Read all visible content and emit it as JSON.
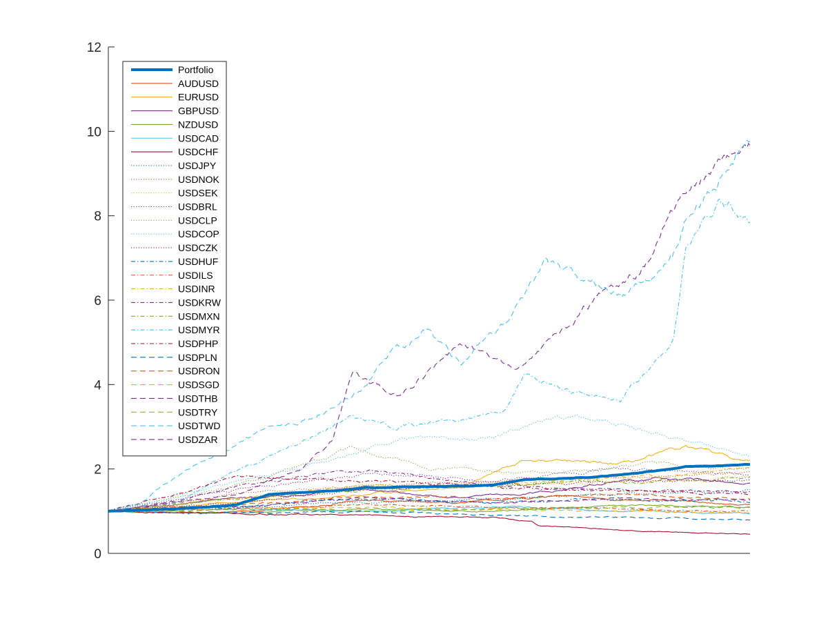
{
  "chart_data": {
    "type": "line",
    "title": "",
    "xlabel": "",
    "ylabel": "",
    "ylim": [
      0,
      12
    ],
    "yticks": [
      0,
      2,
      4,
      6,
      8,
      10,
      12
    ],
    "x_tick_labels": [],
    "grid": false,
    "legend_position": "top-left",
    "series": [
      {
        "name": "Portfolio",
        "color": "#0072BD",
        "style": "solid",
        "bold": true,
        "key_points": [
          [
            0,
            1.0
          ],
          [
            0.1,
            1.05
          ],
          [
            0.2,
            1.15
          ],
          [
            0.25,
            1.4
          ],
          [
            0.35,
            1.48
          ],
          [
            0.4,
            1.55
          ],
          [
            0.5,
            1.58
          ],
          [
            0.6,
            1.62
          ],
          [
            0.65,
            1.75
          ],
          [
            0.75,
            1.8
          ],
          [
            0.85,
            1.95
          ],
          [
            0.9,
            2.05
          ],
          [
            1.0,
            2.1
          ]
        ]
      },
      {
        "name": "AUDUSD",
        "color": "#D95319",
        "style": "solid",
        "key_points": [
          [
            0,
            1.0
          ],
          [
            0.15,
            0.95
          ],
          [
            0.3,
            1.1
          ],
          [
            0.4,
            1.25
          ],
          [
            0.55,
            1.2
          ],
          [
            0.7,
            1.35
          ],
          [
            0.85,
            1.25
          ],
          [
            1.0,
            1.15
          ]
        ]
      },
      {
        "name": "EURUSD",
        "color": "#EDB120",
        "style": "solid",
        "key_points": [
          [
            0,
            1.0
          ],
          [
            0.2,
            1.2
          ],
          [
            0.4,
            1.4
          ],
          [
            0.55,
            1.6
          ],
          [
            0.65,
            2.2
          ],
          [
            0.8,
            2.1
          ],
          [
            0.9,
            2.5
          ],
          [
            1.0,
            2.15
          ]
        ]
      },
      {
        "name": "GBPUSD",
        "color": "#7E2F8E",
        "style": "solid",
        "key_points": [
          [
            0,
            1.0
          ],
          [
            0.2,
            1.3
          ],
          [
            0.4,
            1.5
          ],
          [
            0.55,
            1.3
          ],
          [
            0.7,
            1.5
          ],
          [
            0.85,
            1.8
          ],
          [
            1.0,
            1.65
          ]
        ]
      },
      {
        "name": "NZDUSD",
        "color": "#77AC30",
        "style": "solid",
        "key_points": [
          [
            0,
            1.0
          ],
          [
            0.2,
            0.95
          ],
          [
            0.4,
            1.05
          ],
          [
            0.6,
            1.0
          ],
          [
            0.8,
            1.15
          ],
          [
            1.0,
            1.1
          ]
        ]
      },
      {
        "name": "USDCAD",
        "color": "#4DBEEE",
        "style": "solid",
        "key_points": [
          [
            0,
            1.0
          ],
          [
            0.2,
            1.05
          ],
          [
            0.4,
            1.0
          ],
          [
            0.6,
            1.1
          ],
          [
            0.8,
            1.0
          ],
          [
            1.0,
            0.95
          ]
        ]
      },
      {
        "name": "USDCHF",
        "color": "#A2142F",
        "style": "solid",
        "key_points": [
          [
            0,
            1.0
          ],
          [
            0.2,
            0.95
          ],
          [
            0.4,
            0.9
          ],
          [
            0.6,
            0.85
          ],
          [
            0.66,
            0.75
          ],
          [
            0.67,
            0.65
          ],
          [
            0.8,
            0.55
          ],
          [
            1.0,
            0.45
          ]
        ]
      },
      {
        "name": "USDJPY",
        "color": "#0072BD",
        "style": "dotted",
        "key_points": [
          [
            0,
            1.0
          ],
          [
            0.2,
            1.1
          ],
          [
            0.4,
            1.2
          ],
          [
            0.6,
            1.3
          ],
          [
            0.8,
            1.4
          ],
          [
            1.0,
            1.5
          ]
        ]
      },
      {
        "name": "USDNOK",
        "color": "#D95319",
        "style": "dotted",
        "key_points": [
          [
            0,
            1.0
          ],
          [
            0.2,
            1.4
          ],
          [
            0.4,
            1.6
          ],
          [
            0.6,
            1.7
          ],
          [
            0.8,
            1.8
          ],
          [
            1.0,
            1.9
          ]
        ]
      },
      {
        "name": "USDSEK",
        "color": "#EDB120",
        "style": "dotted",
        "key_points": [
          [
            0,
            1.0
          ],
          [
            0.2,
            1.3
          ],
          [
            0.4,
            1.5
          ],
          [
            0.6,
            1.6
          ],
          [
            0.8,
            1.7
          ],
          [
            1.0,
            1.8
          ]
        ]
      },
      {
        "name": "USDBRL",
        "color": "#7E2F8E",
        "style": "dotted",
        "key_points": [
          [
            0,
            1.0
          ],
          [
            0.2,
            1.5
          ],
          [
            0.4,
            1.9
          ],
          [
            0.6,
            1.7
          ],
          [
            0.8,
            2.0
          ],
          [
            1.0,
            1.85
          ]
        ]
      },
      {
        "name": "USDCLP",
        "color": "#77AC30",
        "style": "dotted",
        "key_points": [
          [
            0,
            1.0
          ],
          [
            0.2,
            1.6
          ],
          [
            0.38,
            2.5
          ],
          [
            0.5,
            2.0
          ],
          [
            0.7,
            1.9
          ],
          [
            0.85,
            2.1
          ],
          [
            1.0,
            2.0
          ]
        ]
      },
      {
        "name": "USDCOP",
        "color": "#4DBEEE",
        "style": "dotted",
        "key_points": [
          [
            0,
            1.0
          ],
          [
            0.2,
            1.7
          ],
          [
            0.3,
            2.0
          ],
          [
            0.45,
            2.7
          ],
          [
            0.6,
            2.8
          ],
          [
            0.72,
            3.3
          ],
          [
            0.85,
            2.9
          ],
          [
            1.0,
            2.3
          ]
        ]
      },
      {
        "name": "USDCZK",
        "color": "#A2142F",
        "style": "dotted",
        "key_points": [
          [
            0,
            1.0
          ],
          [
            0.2,
            1.2
          ],
          [
            0.4,
            1.5
          ],
          [
            0.6,
            1.6
          ],
          [
            0.8,
            1.7
          ],
          [
            1.0,
            1.75
          ]
        ]
      },
      {
        "name": "USDHUF",
        "color": "#0072BD",
        "style": "dashdot",
        "key_points": [
          [
            0,
            1.0
          ],
          [
            0.2,
            1.1
          ],
          [
            0.4,
            1.3
          ],
          [
            0.6,
            1.2
          ],
          [
            0.8,
            1.3
          ],
          [
            1.0,
            1.2
          ]
        ]
      },
      {
        "name": "USDILS",
        "color": "#D95319",
        "style": "dashdot",
        "key_points": [
          [
            0,
            1.0
          ],
          [
            0.2,
            1.05
          ],
          [
            0.4,
            1.15
          ],
          [
            0.6,
            1.1
          ],
          [
            0.8,
            1.05
          ],
          [
            1.0,
            1.0
          ]
        ]
      },
      {
        "name": "USDINR",
        "color": "#EDB120",
        "style": "dashdot",
        "key_points": [
          [
            0,
            1.0
          ],
          [
            0.2,
            1.3
          ],
          [
            0.4,
            1.6
          ],
          [
            0.6,
            1.6
          ],
          [
            0.8,
            1.8
          ],
          [
            1.0,
            2.0
          ]
        ]
      },
      {
        "name": "USDKRW",
        "color": "#7E2F8E",
        "style": "dashdot",
        "key_points": [
          [
            0,
            1.0
          ],
          [
            0.1,
            1.2
          ],
          [
            0.2,
            1.6
          ],
          [
            0.3,
            1.8
          ],
          [
            0.4,
            2.0
          ],
          [
            0.6,
            1.6
          ],
          [
            0.8,
            1.5
          ],
          [
            1.0,
            1.45
          ]
        ]
      },
      {
        "name": "USDMXN",
        "color": "#77AC30",
        "style": "dashdot",
        "key_points": [
          [
            0,
            1.0
          ],
          [
            0.2,
            1.3
          ],
          [
            0.4,
            1.5
          ],
          [
            0.6,
            1.6
          ],
          [
            0.8,
            1.7
          ],
          [
            1.0,
            1.8
          ]
        ]
      },
      {
        "name": "USDMYR",
        "color": "#4DBEEE",
        "style": "dashdot",
        "key_points": [
          [
            0,
            1.0
          ],
          [
            0.1,
            1.2
          ],
          [
            0.25,
            2.3
          ],
          [
            0.32,
            2.8
          ],
          [
            0.38,
            3.2
          ],
          [
            0.45,
            3.0
          ],
          [
            0.55,
            3.2
          ],
          [
            0.62,
            3.5
          ],
          [
            0.65,
            4.3
          ],
          [
            0.72,
            3.8
          ],
          [
            0.8,
            3.7
          ],
          [
            0.85,
            4.5
          ],
          [
            0.88,
            5.0
          ],
          [
            0.9,
            7.3
          ],
          [
            0.95,
            8.4
          ],
          [
            1.0,
            8.0
          ]
        ]
      },
      {
        "name": "USDPHP",
        "color": "#A2142F",
        "style": "dashdot",
        "key_points": [
          [
            0,
            1.0
          ],
          [
            0.2,
            1.8
          ],
          [
            0.4,
            1.7
          ],
          [
            0.6,
            1.6
          ],
          [
            0.8,
            1.5
          ],
          [
            1.0,
            1.4
          ]
        ]
      },
      {
        "name": "USDPLN",
        "color": "#0072BD",
        "style": "dashed",
        "key_points": [
          [
            0,
            1.0
          ],
          [
            0.2,
            0.95
          ],
          [
            0.4,
            1.0
          ],
          [
            0.6,
            0.9
          ],
          [
            0.8,
            0.85
          ],
          [
            1.0,
            0.8
          ]
        ]
      },
      {
        "name": "USDRON",
        "color": "#D95319",
        "style": "dashed",
        "key_points": [
          [
            0,
            1.0
          ],
          [
            0.2,
            1.15
          ],
          [
            0.4,
            1.35
          ],
          [
            0.6,
            1.3
          ],
          [
            0.8,
            1.4
          ],
          [
            1.0,
            1.3
          ]
        ]
      },
      {
        "name": "USDSGD",
        "color": "#EDB120",
        "style": "dashed",
        "key_points": [
          [
            0,
            1.0
          ],
          [
            0.2,
            1.05
          ],
          [
            0.4,
            1.1
          ],
          [
            0.6,
            1.05
          ],
          [
            0.8,
            1.0
          ],
          [
            1.0,
            0.95
          ]
        ]
      },
      {
        "name": "USDTHB",
        "color": "#7E2F8E",
        "style": "dashed",
        "key_points": [
          [
            0,
            1.0
          ],
          [
            0.2,
            1.4
          ],
          [
            0.3,
            2.0
          ],
          [
            0.35,
            2.7
          ],
          [
            0.38,
            4.3
          ],
          [
            0.45,
            3.7
          ],
          [
            0.5,
            4.3
          ],
          [
            0.55,
            4.9
          ],
          [
            0.6,
            4.6
          ],
          [
            0.65,
            4.4
          ],
          [
            0.7,
            5.3
          ],
          [
            0.75,
            5.9
          ],
          [
            0.8,
            6.4
          ],
          [
            0.85,
            7.0
          ],
          [
            0.9,
            8.5
          ],
          [
            0.95,
            9.2
          ],
          [
            1.0,
            9.6
          ]
        ]
      },
      {
        "name": "USDTRY",
        "color": "#77AC30",
        "style": "dashed",
        "key_points": [
          [
            0,
            1.0
          ],
          [
            0.2,
            1.05
          ],
          [
            0.4,
            1.0
          ],
          [
            0.6,
            1.05
          ],
          [
            0.8,
            1.1
          ],
          [
            1.0,
            1.1
          ]
        ]
      },
      {
        "name": "USDTWD",
        "color": "#4DBEEE",
        "style": "dashed",
        "key_points": [
          [
            0,
            1.0
          ],
          [
            0.05,
            1.2
          ],
          [
            0.1,
            1.8
          ],
          [
            0.15,
            2.2
          ],
          [
            0.25,
            3.0
          ],
          [
            0.32,
            3.2
          ],
          [
            0.38,
            3.7
          ],
          [
            0.45,
            4.8
          ],
          [
            0.5,
            5.3
          ],
          [
            0.55,
            4.5
          ],
          [
            0.62,
            5.5
          ],
          [
            0.68,
            6.8
          ],
          [
            0.75,
            6.5
          ],
          [
            0.8,
            6.2
          ],
          [
            0.85,
            6.6
          ],
          [
            0.88,
            7.0
          ],
          [
            0.9,
            8.0
          ],
          [
            0.95,
            8.8
          ],
          [
            1.0,
            9.8
          ]
        ]
      },
      {
        "name": "USDZAR",
        "color": "#7E2F8E",
        "style": "dashed",
        "key_points": [
          [
            0,
            1.0
          ],
          [
            0.2,
            1.1
          ],
          [
            0.4,
            1.3
          ],
          [
            0.6,
            1.2
          ],
          [
            0.8,
            1.3
          ],
          [
            1.0,
            1.25
          ]
        ]
      }
    ]
  }
}
